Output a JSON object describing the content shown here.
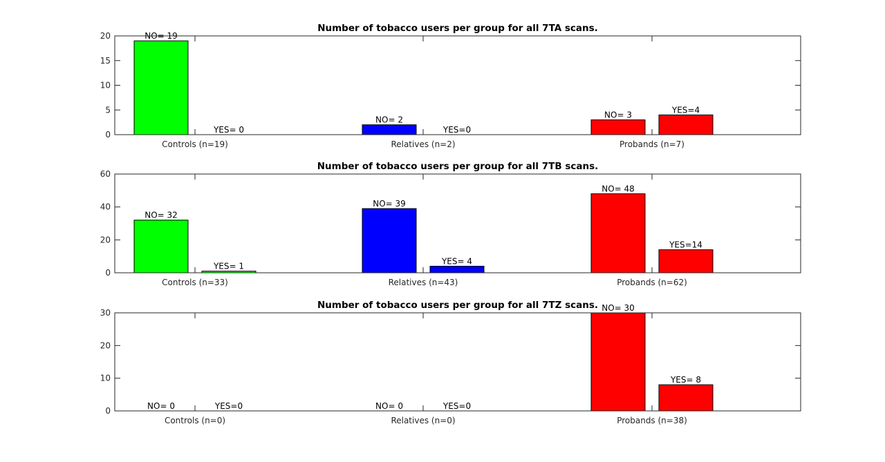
{
  "chart_data": [
    {
      "type": "bar",
      "title": "Number of tobacco users per group for all 7TA scans.",
      "categories": [
        "Controls (n=19)",
        "Relatives (n=2)",
        "Probands (n=7)"
      ],
      "colors": [
        "#00ff00",
        "#0000ff",
        "#ff0000"
      ],
      "ylim": [
        0,
        20
      ],
      "yticks": [
        0,
        5,
        10,
        15,
        20
      ],
      "series": [
        {
          "values": [
            19,
            2,
            3
          ],
          "labels": [
            "NO= 19",
            "NO= 2",
            "NO= 3"
          ]
        },
        {
          "values": [
            0,
            0,
            4
          ],
          "labels": [
            "YES= 0",
            "YES=0",
            "YES=4"
          ]
        }
      ]
    },
    {
      "type": "bar",
      "title": "Number of tobacco users per group for all 7TB scans.",
      "categories": [
        "Controls (n=33)",
        "Relatives (n=43)",
        "Probands (n=62)"
      ],
      "colors": [
        "#00ff00",
        "#0000ff",
        "#ff0000"
      ],
      "ylim": [
        0,
        60
      ],
      "yticks": [
        0,
        20,
        40,
        60
      ],
      "series": [
        {
          "values": [
            32,
            39,
            48
          ],
          "labels": [
            "NO= 32",
            "NO= 39",
            "NO= 48"
          ]
        },
        {
          "values": [
            1,
            4,
            14
          ],
          "labels": [
            "YES= 1",
            "YES= 4",
            "YES=14"
          ]
        }
      ]
    },
    {
      "type": "bar",
      "title": "Number of tobacco users per group for all 7TZ scans.",
      "categories": [
        "Controls (n=0)",
        "Relatives (n=0)",
        "Probands (n=38)"
      ],
      "colors": [
        "#00ff00",
        "#0000ff",
        "#ff0000"
      ],
      "ylim": [
        0,
        30
      ],
      "yticks": [
        0,
        10,
        20,
        30
      ],
      "series": [
        {
          "values": [
            0,
            0,
            30
          ],
          "labels": [
            "NO= 0",
            "NO= 0",
            "NO= 30"
          ]
        },
        {
          "values": [
            0,
            0,
            8
          ],
          "labels": [
            "YES=0",
            "YES=0",
            "YES= 8"
          ]
        }
      ]
    }
  ]
}
